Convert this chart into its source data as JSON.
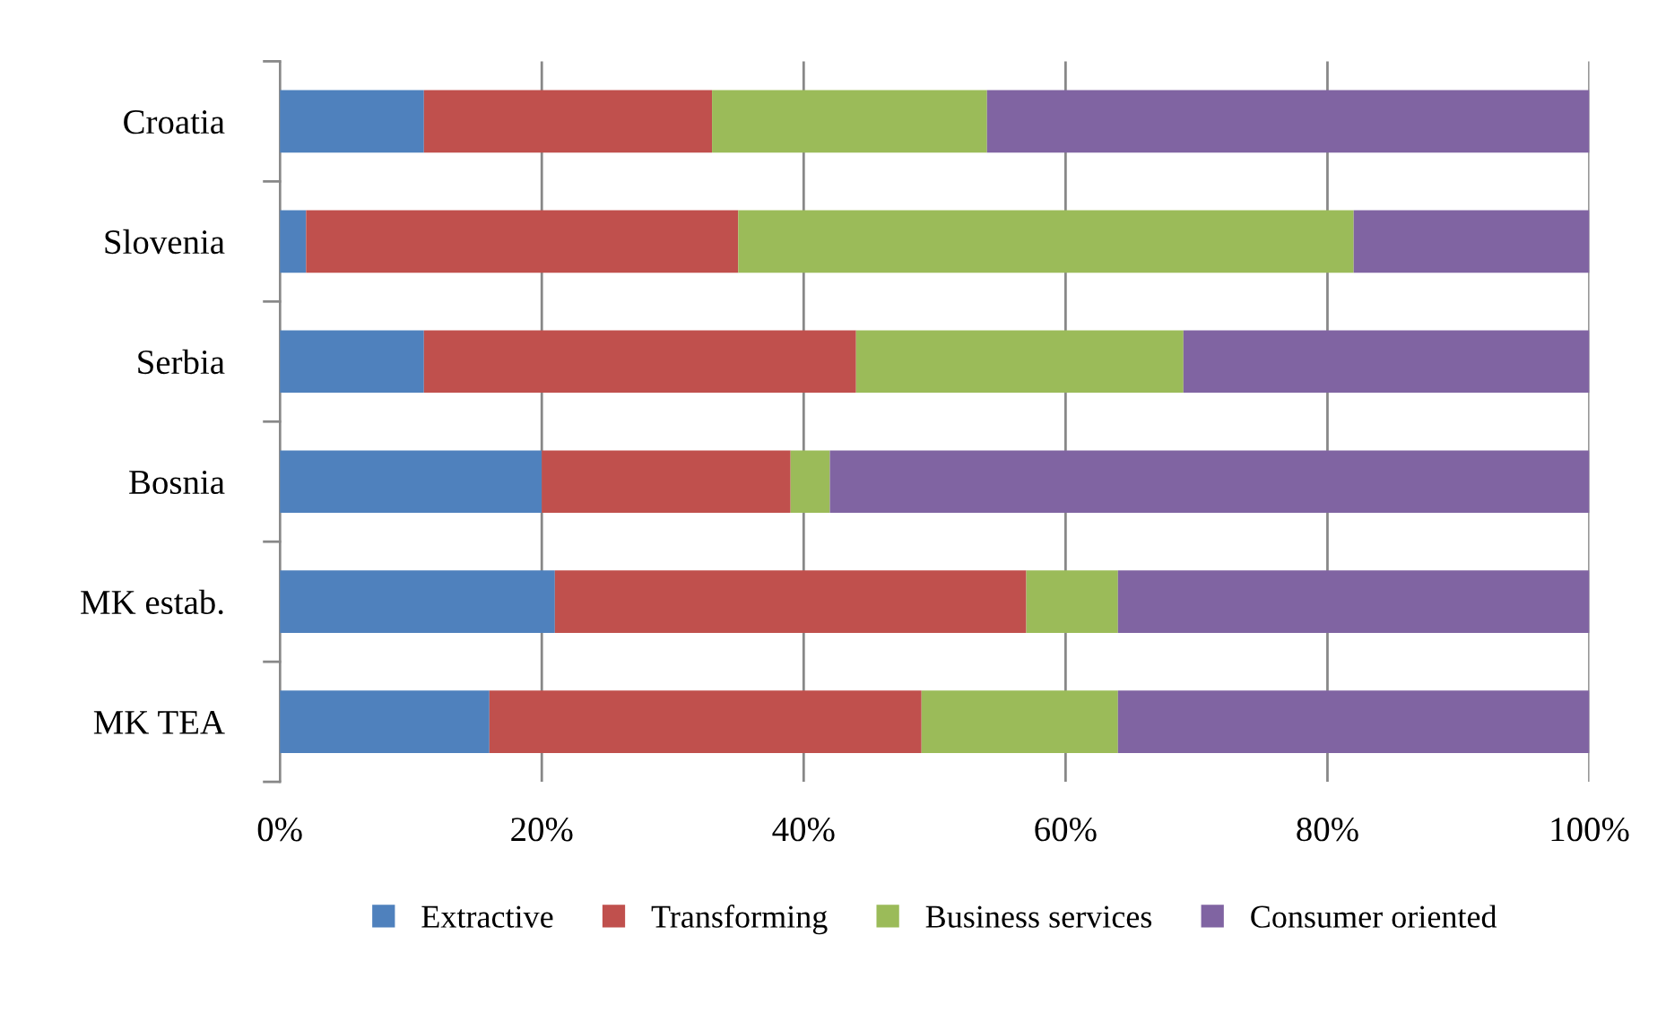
{
  "chart_data": {
    "type": "bar",
    "orientation": "horizontal",
    "stacked": true,
    "categories": [
      "Croatia",
      "Slovenia",
      "Serbia",
      "Bosnia",
      "MK estab.",
      "MK TEA"
    ],
    "series": [
      {
        "name": "Extractive",
        "color": "#4f81bd",
        "values": [
          11,
          2,
          11,
          20,
          21,
          16
        ]
      },
      {
        "name": "Transforming",
        "color": "#c0504d",
        "values": [
          22,
          33,
          33,
          19,
          36,
          33
        ]
      },
      {
        "name": "Business services",
        "color": "#9bbb59",
        "values": [
          21,
          47,
          25,
          3,
          7,
          15
        ]
      },
      {
        "name": "Consumer oriented",
        "color": "#8064a2",
        "values": [
          46,
          18,
          31,
          58,
          36,
          36
        ]
      }
    ],
    "xlim": [
      0,
      100
    ],
    "xticks": [
      {
        "value": 0,
        "label": "0%"
      },
      {
        "value": 20,
        "label": "20%"
      },
      {
        "value": 40,
        "label": "40%"
      },
      {
        "value": 60,
        "label": "60%"
      },
      {
        "value": 80,
        "label": "80%"
      },
      {
        "value": 100,
        "label": "100%"
      }
    ],
    "grid": "x",
    "legend": "bottom"
  }
}
